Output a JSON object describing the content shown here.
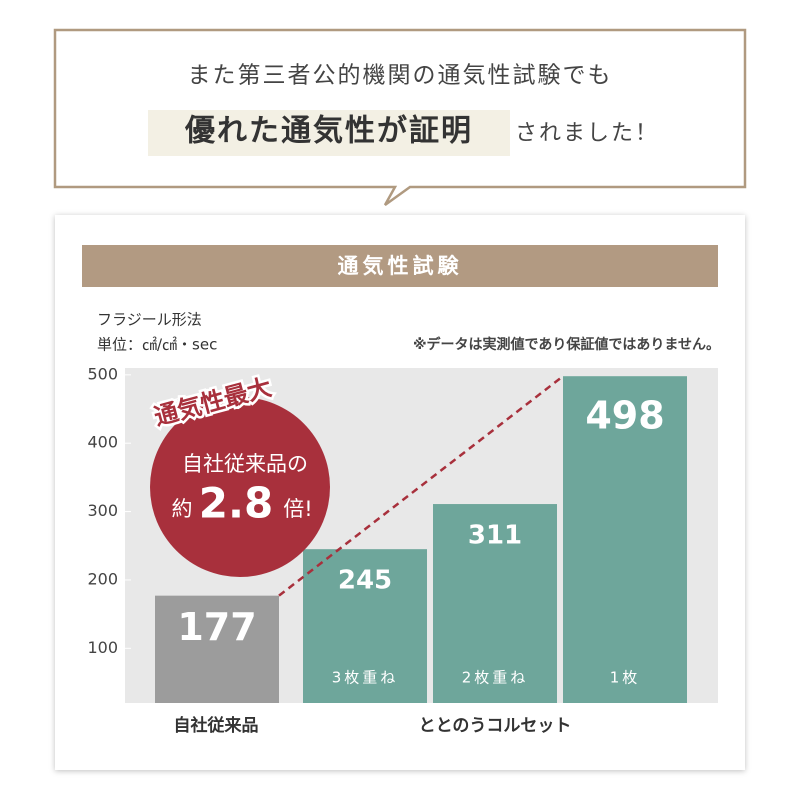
{
  "header": {
    "line1": "また第三者公的機関の通気性試験でも",
    "highlight": "優れた通気性が証明",
    "line2_rest": "されました！"
  },
  "chart_data": {
    "type": "bar",
    "title": "通気性試験",
    "method": "フラジール形法",
    "unit": "単位：㎠/㎠・sec",
    "note": "※データは実測値であり保証値ではありません。",
    "categories": [
      null,
      "3枚重ね",
      "2枚重ね",
      "1枚"
    ],
    "values": [
      177,
      245,
      311,
      498
    ],
    "colors": [
      "#9c9c9c",
      "#6ea69b",
      "#6ea69b",
      "#6ea69b"
    ],
    "groups": [
      "自社従来品",
      "ととのうコルセット"
    ],
    "ylim": [
      20,
      510
    ],
    "yticks": [
      100,
      200,
      300,
      400,
      500
    ],
    "badge": {
      "tag": "通気性最大",
      "line1": "自社従来品の",
      "prefix": "約",
      "ratio": 2.8,
      "suffix": "倍!"
    }
  }
}
